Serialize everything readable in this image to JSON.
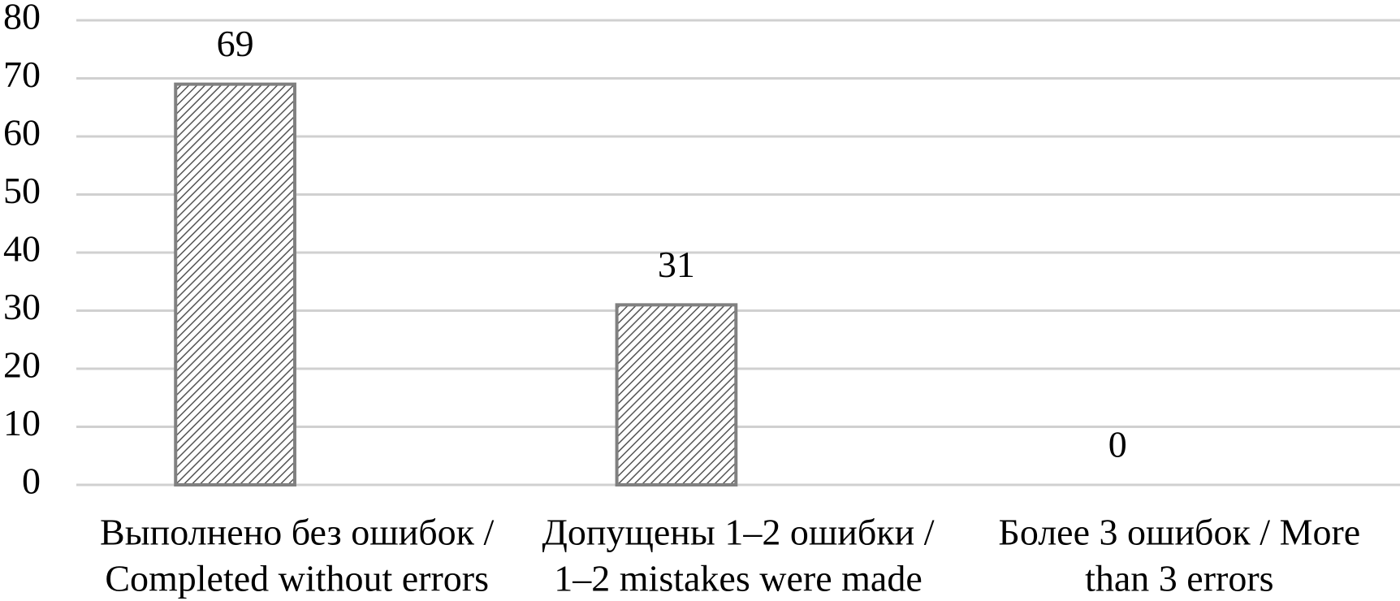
{
  "chart_data": {
    "type": "bar",
    "categories": [
      [
        "Выполнено без ошибок /",
        "Completed without errors"
      ],
      [
        "Допущены 1–2 ошибки /",
        "1–2 mistakes were made"
      ],
      [
        "Более 3 ошибок / More",
        "than 3 errors"
      ]
    ],
    "values": [
      69,
      31,
      0
    ],
    "color": "#808080",
    "ylim": [
      0,
      80
    ],
    "yticks": [
      0,
      10,
      20,
      30,
      40,
      50,
      60,
      70,
      80
    ],
    "grid": true
  }
}
